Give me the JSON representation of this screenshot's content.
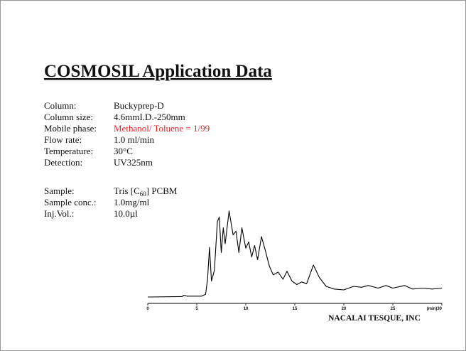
{
  "header": {
    "title": "COSMOSIL Application Data"
  },
  "conditions": [
    {
      "label": "Column:",
      "value": "Buckyprep-D"
    },
    {
      "label": "Column size:",
      "value": "4.6mmI.D.-250mm"
    },
    {
      "label": "Mobile phase:",
      "value": "Methanol/ Toluene = 1/99"
    },
    {
      "label": "Flow rate:",
      "value": "1.0 ml/min"
    },
    {
      "label": "Temperature:",
      "value": "30°C"
    },
    {
      "label": "Detection:",
      "value": "UV325nm"
    }
  ],
  "sample": {
    "label": "Sample:",
    "value": "Tris [C",
    "subscript": "60",
    "value_end": "] PCBM"
  },
  "sample_info": [
    {
      "label": "Sample conc.:",
      "value": "1.0mg/ml"
    },
    {
      "label": "Inj.Vol.:",
      "value": "10.0µl"
    }
  ],
  "chart_data": {
    "type": "line",
    "color": "#000000",
    "x": [
      0,
      3.5,
      3.7,
      4.0,
      5.5,
      5.9,
      6.1,
      6.3,
      6.5,
      6.8,
      7.1,
      7.3,
      7.5,
      7.7,
      7.9,
      8.3,
      8.7,
      9.0,
      9.3,
      9.6,
      10.0,
      10.3,
      10.6,
      10.9,
      11.2,
      11.6,
      12.0,
      12.4,
      12.8,
      13.3,
      13.8,
      14.2,
      14.7,
      15.2,
      15.7,
      16.2,
      16.9,
      17.5,
      18.2,
      19.0,
      20.0,
      21.0,
      21.8,
      22.5,
      23.5,
      24.3,
      25.0,
      26.2,
      27.0,
      28.0,
      29.0,
      30.0
    ],
    "values": [
      0,
      0.5,
      2,
      1,
      1,
      3,
      20,
      56,
      18,
      30,
      85,
      90,
      50,
      78,
      60,
      97,
      70,
      74,
      50,
      78,
      55,
      62,
      45,
      58,
      42,
      68,
      52,
      35,
      25,
      28,
      20,
      29,
      18,
      14,
      17,
      15,
      36,
      22,
      12,
      9,
      8,
      12,
      11,
      13,
      10,
      13,
      10,
      13,
      9,
      10,
      9,
      10
    ],
    "xlim": [
      0,
      30
    ],
    "ylim": [
      0,
      100
    ],
    "xticks": [
      0,
      5,
      10,
      15,
      20,
      25,
      {
        "value": 30,
        "label": "(min)30"
      }
    ]
  },
  "footer": "NACALAI TESQUE, INC"
}
